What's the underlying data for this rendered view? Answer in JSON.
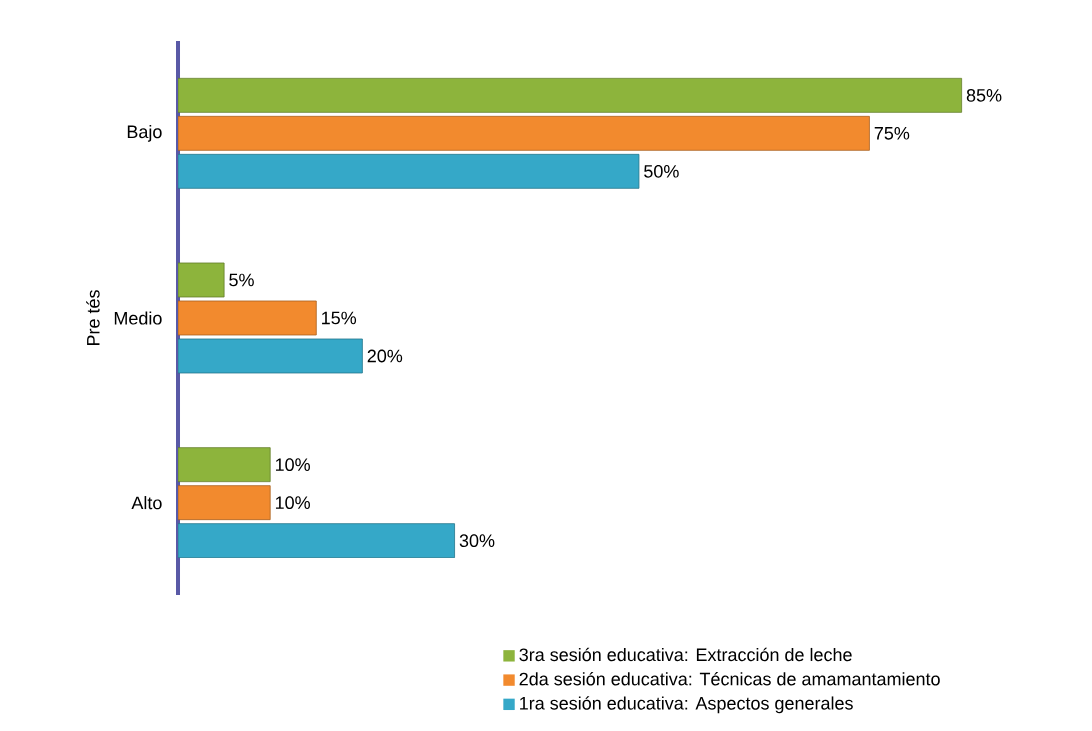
{
  "chart_data": {
    "type": "bar",
    "orientation": "horizontal",
    "ylabel": "Pre tés",
    "categories": [
      "Bajo",
      "Medio",
      "Alto"
    ],
    "legend": "bottom",
    "series": [
      {
        "name": "3ra sesión educativa: Extracción de leche",
        "color": "#8db43c",
        "values": [
          85,
          5,
          10
        ],
        "value_labels": [
          "85%",
          "5%",
          "10%"
        ]
      },
      {
        "name": "2da sesión educativa: Técnicas de amamantamiento",
        "color": "#f28a2e",
        "values": [
          75,
          15,
          10
        ],
        "value_labels": [
          "75%",
          "15%",
          "10%"
        ]
      },
      {
        "name": "1ra sesión educativa: Aspectos generales",
        "color": "#35a8c8",
        "values": [
          50,
          20,
          30
        ],
        "value_labels": [
          "50%",
          "20%",
          "30%"
        ]
      }
    ]
  }
}
